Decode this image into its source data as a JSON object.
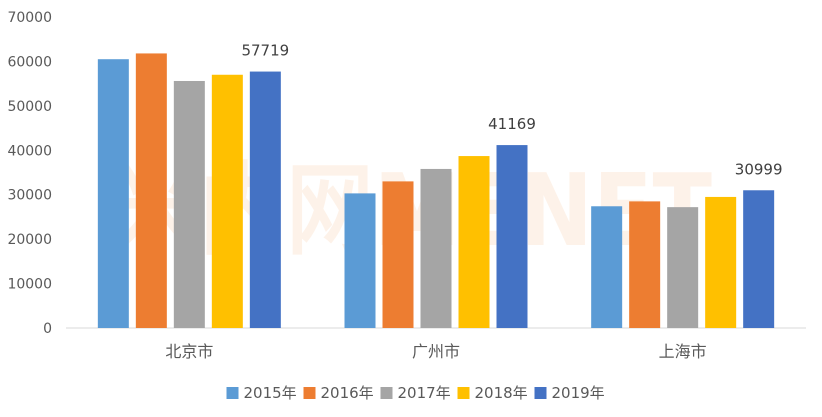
{
  "chart_data": {
    "type": "bar",
    "title": "",
    "xlabel": "",
    "ylabel": "",
    "ylim": [
      0,
      70000
    ],
    "yticks": [
      0,
      10000,
      20000,
      30000,
      40000,
      50000,
      60000,
      70000
    ],
    "categories": [
      "北京市",
      "广州市",
      "上海市"
    ],
    "series": [
      {
        "name": "2015年",
        "color": "#5b9bd5",
        "values": [
          60500,
          30300,
          27400
        ]
      },
      {
        "name": "2016年",
        "color": "#ed7d31",
        "values": [
          61800,
          33000,
          28500
        ]
      },
      {
        "name": "2017年",
        "color": "#a5a5a5",
        "values": [
          55600,
          35800,
          27200
        ]
      },
      {
        "name": "2018年",
        "color": "#ffc000",
        "values": [
          57000,
          38700,
          29500
        ]
      },
      {
        "name": "2019年",
        "color": "#4472c4",
        "values": [
          57719,
          41169,
          30999
        ]
      }
    ],
    "data_labels": [
      {
        "series": 4,
        "category": 0,
        "text": "57719"
      },
      {
        "series": 4,
        "category": 1,
        "text": "41169"
      },
      {
        "series": 4,
        "category": 2,
        "text": "30999"
      }
    ],
    "grid": false,
    "legend_position": "bottom"
  },
  "watermark": "米内网MENET"
}
